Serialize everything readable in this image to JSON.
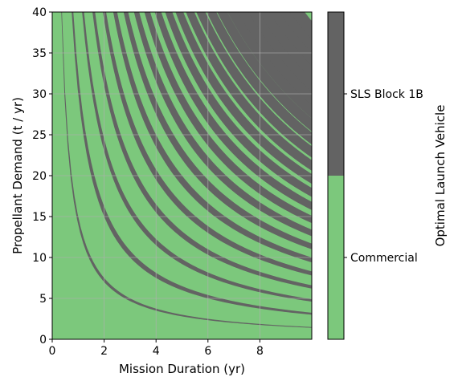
{
  "chart_data": {
    "type": "heatmap",
    "xlabel": "Mission Duration (yr)",
    "ylabel": "Propellant Demand (t / yr)",
    "xlim": [
      0,
      10
    ],
    "ylim": [
      0,
      40
    ],
    "xticks": [
      "0",
      "2",
      "4",
      "6",
      "8"
    ],
    "yticks": [
      "0",
      "5",
      "10",
      "15",
      "20",
      "25",
      "30",
      "35",
      "40"
    ],
    "grid": true,
    "colorbar": {
      "label": "Optimal Launch Vehicle",
      "categories": [
        {
          "name": "Commercial",
          "color": "#7cc87c"
        },
        {
          "name": "SLS Block 1B",
          "color": "#636363"
        }
      ]
    },
    "regions": {
      "description_boundaries": "SLS Block 1B bands lie along constant total-propellant curves duration × demand = k",
      "sls_bands": [
        [
          14,
          15
        ],
        [
          30,
          32.5
        ],
        [
          46,
          49
        ],
        [
          62,
          66
        ],
        [
          78,
          83
        ],
        [
          94,
          100
        ],
        [
          110,
          117
        ],
        [
          126,
          134
        ],
        [
          142,
          151
        ],
        [
          158,
          168
        ],
        [
          174,
          185
        ],
        [
          190,
          202
        ],
        [
          206,
          219
        ],
        [
          222,
          236
        ],
        [
          238,
          253
        ],
        [
          254,
          270
        ],
        [
          270,
          287
        ],
        [
          286,
          304
        ],
        [
          302,
          321
        ],
        [
          318,
          338
        ],
        [
          334,
          355
        ],
        [
          350,
          372
        ],
        [
          366,
          389
        ]
      ]
    }
  }
}
